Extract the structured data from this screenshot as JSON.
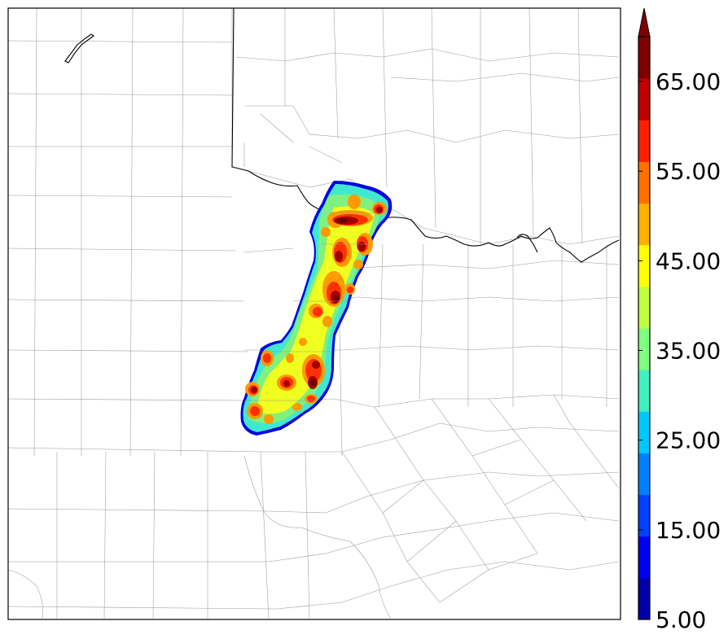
{
  "colorbar": {
    "tick_labels": [
      "5.00",
      "15.00",
      "25.00",
      "35.00",
      "45.00",
      "55.00",
      "65.00"
    ],
    "min": 5,
    "max": 70,
    "step": 5,
    "extend": "max",
    "colors": [
      "#0000a8",
      "#0000f0",
      "#0040ff",
      "#0080ff",
      "#00c8ff",
      "#40f0c0",
      "#80ff80",
      "#c0ff40",
      "#ffff00",
      "#ffb000",
      "#ff7000",
      "#ff2000",
      "#c00000",
      "#800000"
    ]
  },
  "reflectivity_colors": {
    "outline": "#0000e0",
    "cyan": "#40e8d0",
    "green": "#80f080",
    "yellow": "#f0ff20",
    "orange": "#ff9a00",
    "red": "#ff3000",
    "darkred": "#a00000",
    "core": "#6a0000"
  }
}
